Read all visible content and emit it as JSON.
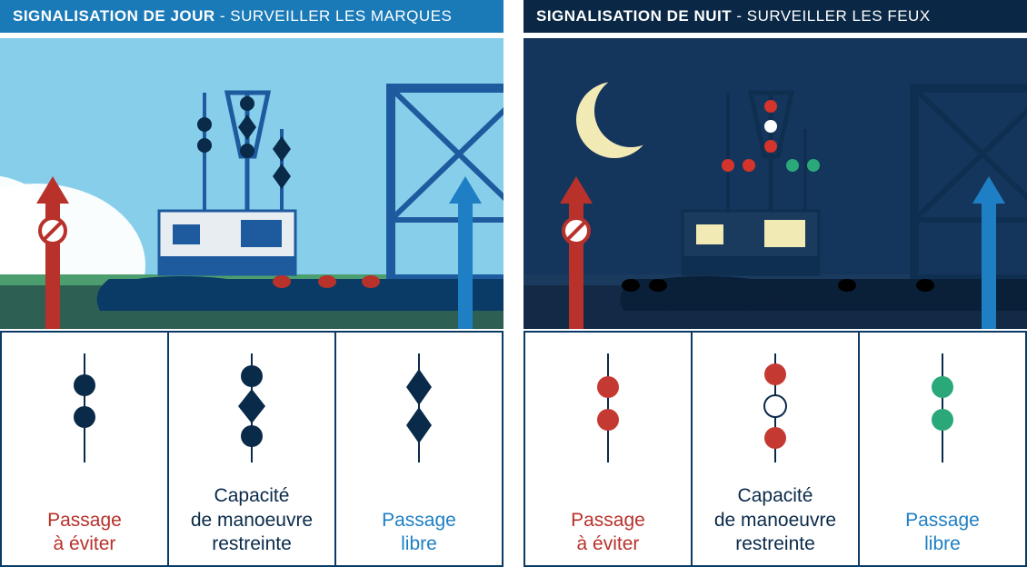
{
  "panels": {
    "day": {
      "header_bold": "SIGNALISATION DE JOUR",
      "header_rest": " - SURVEILLER LES MARQUES",
      "header_bg": "#1a7ab8",
      "sky_color": "#87ceeb",
      "water_color": "#4d9e6e",
      "water_dark": "#2d5f52",
      "cloud_color": "#ffffff",
      "boat_hull": "#0a3a66",
      "boat_cabin": "#e8edf2",
      "boat_frame": "#1e5a9e",
      "mark_color": "#0a2a4a",
      "buoy_color": "#b8312b",
      "arrow_left_color": "#b8312b",
      "arrow_right_color": "#1e7fc4",
      "legend_border": "#0a3a66",
      "legend": [
        {
          "label": "Passage\nà éviter",
          "color": "#b8312b",
          "type": "balls2",
          "shape_color": "#0a2a4a"
        },
        {
          "label": "Capacité\nde manoeuvre\nrestreinte",
          "color": "#0a2a4a",
          "type": "ball-diamond-ball",
          "shape_color": "#0a2a4a"
        },
        {
          "label": "Passage\nlibre",
          "color": "#1e7fc4",
          "type": "diamonds2",
          "shape_color": "#0a2a4a"
        }
      ]
    },
    "night": {
      "header_bold": "SIGNALISATION DE NUIT",
      "header_rest": " - SURVEILLER LES FEUX",
      "header_bg": "#0a2845",
      "sky_color": "#15365c",
      "water_color": "#1a3a5e",
      "water_dark": "#122a45",
      "moon_color": "#f2eab5",
      "boat_hull": "#0a1f38",
      "boat_cabin": "#1a3a5e",
      "boat_frame": "#0f2f50",
      "window_lit": "#f2eab5",
      "light_red": "#d4342b",
      "light_white": "#ffffff",
      "light_green": "#2aa879",
      "arrow_left_color": "#b8312b",
      "arrow_right_color": "#1e7fc4",
      "legend_border": "#0a3a66",
      "legend": [
        {
          "label": "Passage\nà éviter",
          "color": "#b8312b",
          "type": "lights2",
          "colors": [
            "#c43a32",
            "#c43a32"
          ]
        },
        {
          "label": "Capacité\nde manoeuvre\nrestreinte",
          "color": "#0a2a4a",
          "type": "lights3",
          "colors": [
            "#c43a32",
            "#ffffff",
            "#c43a32"
          ],
          "stroke_mid": "#0a2a4a"
        },
        {
          "label": "Passage\nlibre",
          "color": "#1e7fc4",
          "type": "lights2",
          "colors": [
            "#2aa879",
            "#2aa879"
          ]
        }
      ]
    }
  }
}
